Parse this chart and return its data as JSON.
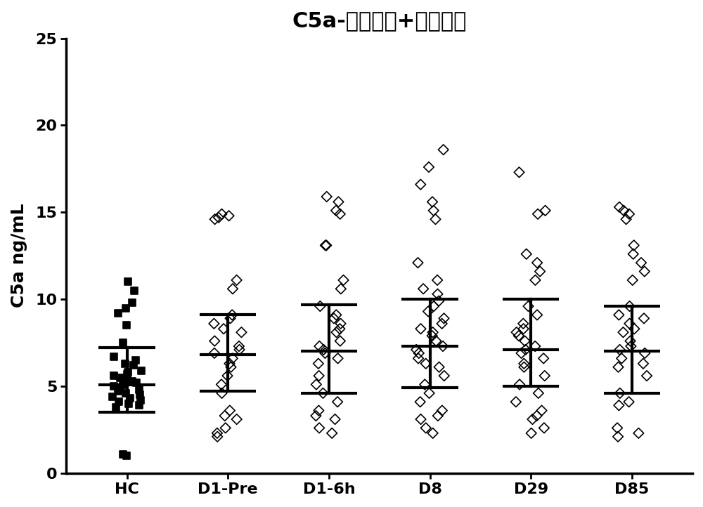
{
  "title": "C5a-无泼尼松+阵伐可洋",
  "ylabel": "C5a ng/mL",
  "categories": [
    "HC",
    "D1-Pre",
    "D1-6h",
    "D8",
    "D29",
    "D85"
  ],
  "ylim": [
    0,
    25
  ],
  "yticks": [
    0,
    5,
    10,
    15,
    20,
    25
  ],
  "medians": [
    5.1,
    6.8,
    7.0,
    7.3,
    7.1,
    7.0
  ],
  "errors_upper": [
    2.1,
    2.3,
    2.7,
    2.7,
    2.9,
    2.6
  ],
  "errors_lower": [
    1.6,
    2.1,
    2.4,
    2.4,
    2.1,
    2.4
  ],
  "HC": [
    6.7,
    6.5,
    6.3,
    6.2,
    5.9,
    5.8,
    5.7,
    5.6,
    5.5,
    5.4,
    5.3,
    5.2,
    5.1,
    5.0,
    4.9,
    4.8,
    4.7,
    4.6,
    4.5,
    4.4,
    4.3,
    4.2,
    4.1,
    4.0,
    3.9,
    3.8,
    11.0,
    10.5,
    9.8,
    9.5,
    9.2,
    8.5,
    7.5,
    1.0,
    1.1
  ],
  "D1Pre": [
    14.9,
    14.8,
    14.7,
    14.6,
    11.1,
    10.6,
    9.1,
    8.9,
    8.6,
    8.3,
    8.1,
    7.6,
    7.3,
    7.1,
    6.9,
    6.6,
    6.3,
    6.1,
    5.6,
    5.1,
    4.6,
    3.6,
    3.3,
    3.1,
    2.6,
    2.3,
    2.1
  ],
  "D1_6h": [
    15.9,
    15.6,
    15.1,
    14.9,
    13.1,
    11.1,
    10.6,
    9.6,
    9.1,
    8.9,
    8.6,
    8.3,
    8.1,
    7.6,
    7.3,
    7.1,
    6.9,
    6.6,
    6.3,
    5.6,
    5.1,
    4.6,
    4.1,
    3.6,
    3.3,
    3.1,
    2.6,
    2.3,
    13.1
  ],
  "D8": [
    18.6,
    17.6,
    16.6,
    15.6,
    15.1,
    14.6,
    12.1,
    11.1,
    10.6,
    10.3,
    9.9,
    9.6,
    9.3,
    8.9,
    8.6,
    8.3,
    8.1,
    7.9,
    7.6,
    7.3,
    7.1,
    6.9,
    6.6,
    6.3,
    6.1,
    5.6,
    5.1,
    4.6,
    4.1,
    3.6,
    3.3,
    3.1,
    2.6,
    2.3
  ],
  "D29": [
    17.3,
    15.1,
    14.9,
    12.6,
    12.1,
    11.6,
    11.1,
    9.6,
    9.1,
    8.6,
    8.3,
    8.1,
    7.9,
    7.6,
    7.3,
    7.1,
    6.9,
    6.6,
    6.3,
    6.1,
    5.6,
    5.1,
    4.6,
    4.1,
    3.6,
    3.3,
    3.1,
    2.6,
    2.3
  ],
  "D85": [
    15.3,
    15.1,
    14.9,
    14.6,
    13.1,
    12.6,
    12.1,
    11.6,
    11.1,
    9.6,
    9.1,
    8.9,
    8.6,
    8.3,
    8.1,
    7.6,
    7.3,
    7.1,
    6.9,
    6.6,
    6.3,
    6.1,
    5.6,
    4.6,
    4.1,
    3.9,
    2.6,
    2.3,
    2.1
  ],
  "background_color": "#ffffff",
  "point_color": "#000000",
  "line_color": "#000000",
  "title_fontsize": 22,
  "label_fontsize": 18,
  "tick_fontsize": 16
}
